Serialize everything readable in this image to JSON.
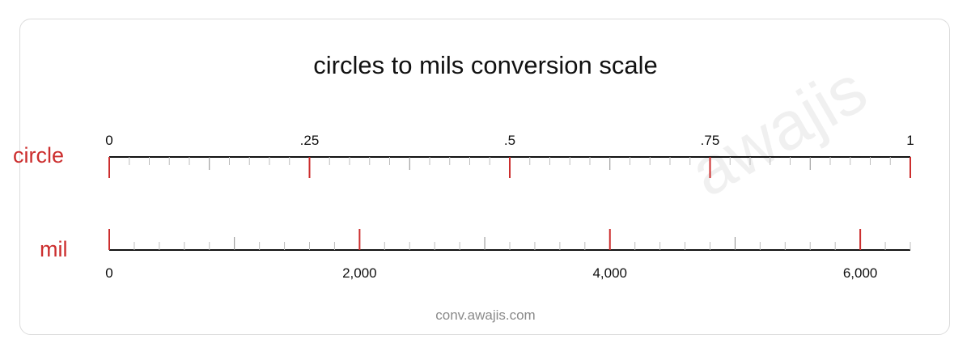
{
  "title": "circles to mils conversion scale",
  "footer": "conv.awajis.com",
  "watermark": "awajis",
  "colors": {
    "accent": "#cc2e2e",
    "axis": "#111111",
    "minor_tick": "#bdbdbd",
    "mid_tick": "#8c8c8c"
  },
  "chart_data": {
    "type": "conversion-scale",
    "title": "circles to mils conversion scale",
    "conversion": {
      "from": "circle",
      "to": "mil",
      "factor": 6400
    },
    "scales": [
      {
        "unit": "circle",
        "min": 0,
        "max": 1,
        "major": [
          0,
          0.25,
          0.5,
          0.75,
          1
        ],
        "major_labels": [
          "0",
          ".25",
          ".5",
          ".75",
          "1"
        ],
        "minor_step": 0.025,
        "mid_step": 0.125,
        "label_position": "above"
      },
      {
        "unit": "mil",
        "min": 0,
        "max": 6400,
        "major": [
          0,
          2000,
          4000,
          6000
        ],
        "major_labels": [
          "0",
          "2,000",
          "4,000",
          "6,000"
        ],
        "minor_step": 200,
        "mid_step": 1000,
        "label_position": "below"
      }
    ]
  }
}
